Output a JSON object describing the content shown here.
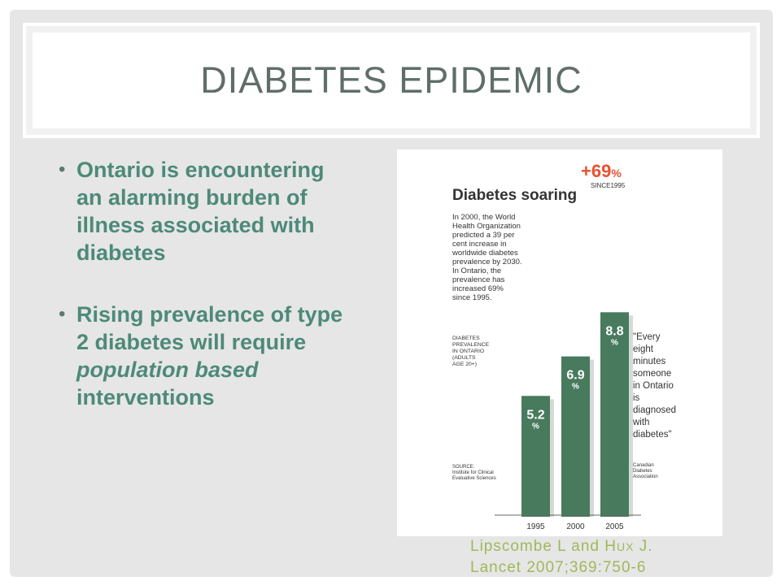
{
  "slide": {
    "title": "DIABETES EPIDEMIC",
    "bullets": [
      {
        "text": "Ontario is encountering an alarming burden of illness associated with diabetes"
      },
      {
        "pre": "Rising prevalence of type 2 diabetes will require ",
        "emph": "population based",
        "post": " interventions"
      }
    ],
    "citation": {
      "line1": "Lipscombe L and H",
      "line1_small": "UX",
      "line1_end": " J.",
      "line2": "Lancet 2007;369:750-6"
    }
  },
  "chart_data": {
    "type": "bar",
    "title": "Diabetes soaring",
    "intro": [
      "In 2000, the World",
      "Health Organization",
      "predicted a 39 per",
      "cent increase in",
      "worldwide diabetes",
      "prevalence by 2030.",
      "In Ontario, the",
      "prevalence has",
      "increased 69%",
      "since 1995."
    ],
    "ylabel": [
      "DIABETES",
      "PREVALENCE",
      "IN ONTARIO",
      "(ADULTS",
      "AGE 20+)"
    ],
    "source": [
      "SOURCE:",
      "Institute for Clinical",
      "Evaluative Sciences"
    ],
    "categories": [
      "1995",
      "2000",
      "2005"
    ],
    "values": [
      5.2,
      6.9,
      8.8
    ],
    "value_labels": [
      "5.2",
      "6.9",
      "8.8"
    ],
    "unit": "%",
    "ylim": [
      0,
      10
    ],
    "change_label": "+69",
    "change_unit": "%",
    "change_since": "SINCE1995",
    "quote": [
      "\"Every",
      "eight",
      "minutes",
      "someone",
      "in Ontario",
      "is",
      "diagnosed",
      "with",
      "diabetes\""
    ],
    "quote_source": [
      "Canadian",
      "Diabetes",
      "Association"
    ],
    "colors": {
      "bar": "#487a5e",
      "bar_shadow": "#d4dbd6",
      "accent": "#e8502f",
      "text": "#333333"
    }
  }
}
